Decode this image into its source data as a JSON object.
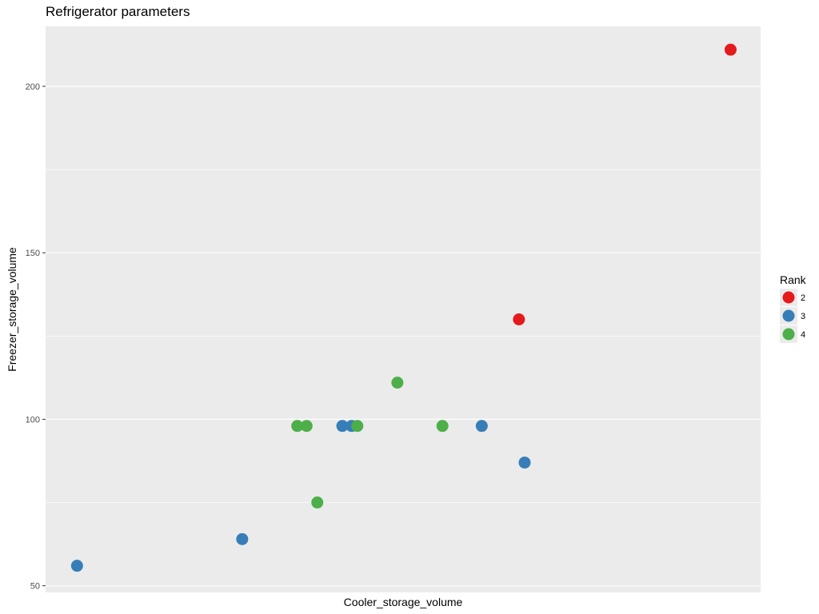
{
  "chart_data": {
    "type": "scatter",
    "title": "Refrigerator parameters",
    "xlabel": "Cooler_storage_volume",
    "ylabel": "Freezer_storage_volume",
    "ylim": [
      48,
      218
    ],
    "xlim": [
      0,
      1
    ],
    "yticks": [
      50,
      100,
      150,
      200
    ],
    "y_minor": [
      75,
      125,
      175
    ],
    "legend": {
      "title": "Rank",
      "position": "right",
      "entries": [
        {
          "label": "2",
          "color": "#e41a1c"
        },
        {
          "label": "3",
          "color": "#377eb8"
        },
        {
          "label": "4",
          "color": "#4daf4a"
        }
      ]
    },
    "series": [
      {
        "name": "2",
        "color": "#e41a1c",
        "points": [
          [
            0.958,
            211
          ],
          [
            0.662,
            130
          ]
        ]
      },
      {
        "name": "3",
        "color": "#377eb8",
        "points": [
          [
            0.044,
            56
          ],
          [
            0.275,
            64
          ],
          [
            0.415,
            98
          ],
          [
            0.428,
            98
          ],
          [
            0.61,
            98
          ],
          [
            0.67,
            87
          ]
        ]
      },
      {
        "name": "4",
        "color": "#4daf4a",
        "points": [
          [
            0.352,
            98
          ],
          [
            0.365,
            98
          ],
          [
            0.38,
            75
          ],
          [
            0.436,
            98
          ],
          [
            0.492,
            111
          ],
          [
            0.555,
            98
          ]
        ]
      }
    ]
  }
}
